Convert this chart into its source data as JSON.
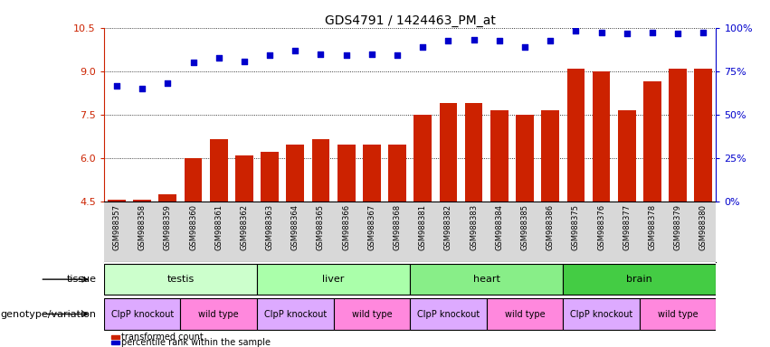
{
  "title": "GDS4791 / 1424463_PM_at",
  "samples": [
    "GSM988357",
    "GSM988358",
    "GSM988359",
    "GSM988360",
    "GSM988361",
    "GSM988362",
    "GSM988363",
    "GSM988364",
    "GSM988365",
    "GSM988366",
    "GSM988367",
    "GSM988368",
    "GSM988381",
    "GSM988382",
    "GSM988383",
    "GSM988384",
    "GSM988385",
    "GSM988386",
    "GSM988375",
    "GSM988376",
    "GSM988377",
    "GSM988378",
    "GSM988379",
    "GSM988380"
  ],
  "bar_values": [
    4.55,
    4.55,
    4.75,
    6.0,
    6.65,
    6.1,
    6.2,
    6.45,
    6.65,
    6.45,
    6.45,
    6.45,
    7.5,
    7.9,
    7.9,
    7.65,
    7.5,
    7.65,
    9.1,
    9.0,
    7.65,
    8.65,
    9.1,
    9.1
  ],
  "dot_values": [
    8.5,
    8.4,
    8.6,
    9.3,
    9.45,
    9.35,
    9.55,
    9.7,
    9.6,
    9.55,
    9.6,
    9.55,
    9.85,
    10.05,
    10.1,
    10.05,
    9.85,
    10.05,
    10.4,
    10.35,
    10.3,
    10.35,
    10.3,
    10.35
  ],
  "ylim": [
    4.5,
    10.5
  ],
  "yticks_left": [
    4.5,
    6.0,
    7.5,
    9.0,
    10.5
  ],
  "yticks_right": [
    0,
    25,
    50,
    75,
    100
  ],
  "bar_color": "#cc2200",
  "dot_color": "#0000cc",
  "tissue_groups": [
    {
      "label": "testis",
      "start": 0,
      "end": 5,
      "color": "#ccffcc"
    },
    {
      "label": "liver",
      "start": 6,
      "end": 11,
      "color": "#aaffaa"
    },
    {
      "label": "heart",
      "start": 12,
      "end": 17,
      "color": "#88ee88"
    },
    {
      "label": "brain",
      "start": 18,
      "end": 23,
      "color": "#44cc44"
    }
  ],
  "geno_groups": [
    {
      "label": "ClpP knockout",
      "start": 0,
      "end": 2,
      "color": "#ddaaff"
    },
    {
      "label": "wild type",
      "start": 3,
      "end": 5,
      "color": "#ff88dd"
    },
    {
      "label": "ClpP knockout",
      "start": 6,
      "end": 8,
      "color": "#ddaaff"
    },
    {
      "label": "wild type",
      "start": 9,
      "end": 11,
      "color": "#ff88dd"
    },
    {
      "label": "ClpP knockout",
      "start": 12,
      "end": 14,
      "color": "#ddaaff"
    },
    {
      "label": "wild type",
      "start": 15,
      "end": 17,
      "color": "#ff88dd"
    },
    {
      "label": "ClpP knockout",
      "start": 18,
      "end": 20,
      "color": "#ddaaff"
    },
    {
      "label": "wild type",
      "start": 21,
      "end": 23,
      "color": "#ff88dd"
    }
  ],
  "legend_bar_label": "transformed count",
  "legend_dot_label": "percentile rank within the sample",
  "tissue_label": "tissue",
  "geno_label": "genotype/variation"
}
